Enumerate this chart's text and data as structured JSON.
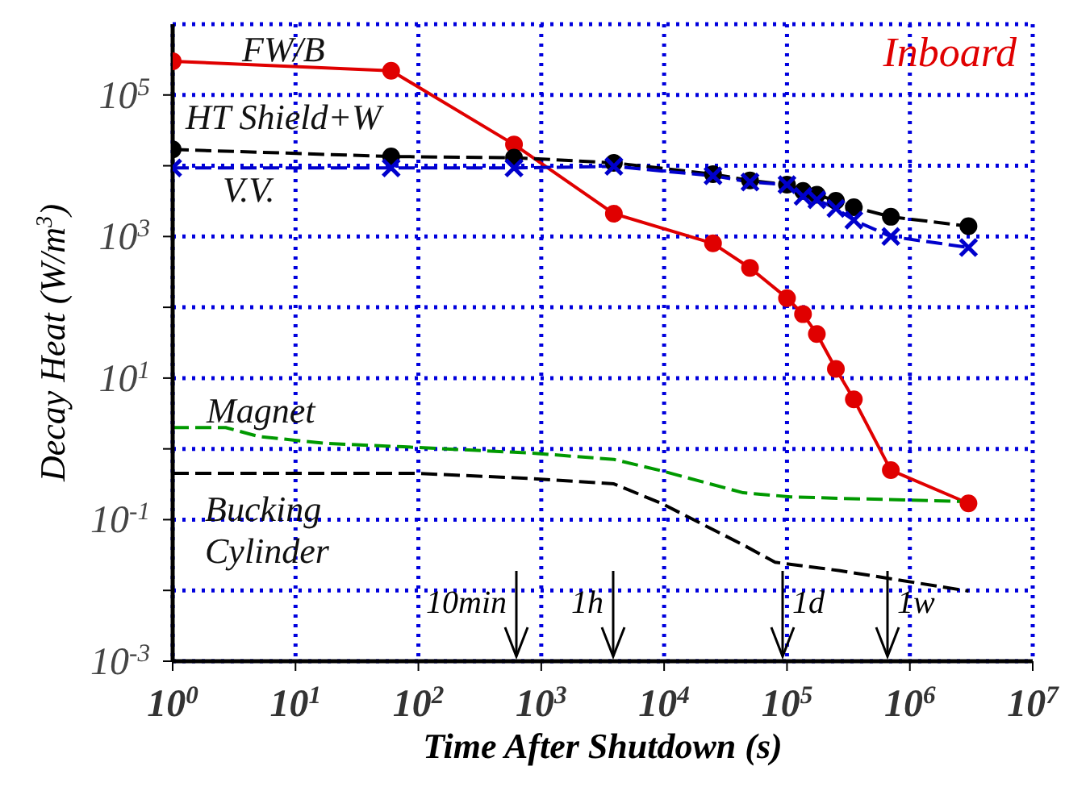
{
  "chart_data": {
    "type": "line",
    "xlabel": "Time After Shutdown (s)",
    "ylabel": "Decay Heat (W/m$^{3}$)",
    "log": "xy",
    "grid": true,
    "xlim": [
      1,
      10000000
    ],
    "ylim": [
      0.001,
      1000000
    ],
    "xticks": [
      {
        "value": 1,
        "label": "10$^{0}$"
      },
      {
        "value": 10,
        "label": "10$^{1}$"
      },
      {
        "value": 100,
        "label": "10$^{2}$"
      },
      {
        "value": 1000,
        "label": "10$^{3}$"
      },
      {
        "value": 10000,
        "label": "10$^{4}$"
      },
      {
        "value": 100000,
        "label": "10$^{5}$"
      },
      {
        "value": 1000000,
        "label": "10$^{6}$"
      },
      {
        "value": 10000000,
        "label": "10$^{7}$"
      }
    ],
    "yticks": [
      {
        "value": 0.001,
        "label": "10$^{-3}$"
      },
      {
        "value": 0.01,
        "label": null
      },
      {
        "value": 0.1,
        "label": "10$^{-1}$"
      },
      {
        "value": 1,
        "label": null
      },
      {
        "value": 10,
        "label": "10$^{1}$"
      },
      {
        "value": 100,
        "label": null
      },
      {
        "value": 1000,
        "label": "10$^{3}$"
      },
      {
        "value": 10000,
        "label": null
      },
      {
        "value": 100000,
        "label": "10$^{5}$"
      }
    ],
    "series": [
      {
        "name": "FW/B",
        "color": "#e00000",
        "marker": "circle",
        "line_style": "solid",
        "x": [
          1,
          60,
          600,
          3900,
          25000,
          50000,
          100000,
          135000,
          175000,
          250000,
          350000,
          700000,
          3000000
        ],
        "values": [
          300000,
          220000,
          20000,
          2100,
          800,
          360,
          135,
          80,
          42,
          13.5,
          5,
          0.5,
          0.17
        ]
      },
      {
        "name": "HT Shield+W",
        "color": "#000000",
        "marker": "circle",
        "line_style": "dashed",
        "x": [
          1,
          60,
          600,
          3900,
          25000,
          50000,
          100000,
          135000,
          175000,
          250000,
          350000,
          700000,
          3000000
        ],
        "values": [
          17000,
          13500,
          13000,
          11000,
          7600,
          6200,
          5400,
          4400,
          3900,
          3200,
          2600,
          1900,
          1400
        ]
      },
      {
        "name": "V.V.",
        "color": "#0000cc",
        "marker": "cross",
        "line_style": "dashed",
        "x": [
          1,
          60,
          600,
          3900,
          25000,
          50000,
          100000,
          135000,
          175000,
          250000,
          350000,
          700000,
          3000000
        ],
        "values": [
          9300,
          9300,
          9300,
          9800,
          7200,
          5900,
          5400,
          3700,
          3300,
          2500,
          1700,
          1000,
          700
        ]
      },
      {
        "name": "Magnet",
        "color": "#009900",
        "marker": "none",
        "line_style": "dashed",
        "x": [
          1,
          2.7,
          5,
          17,
          75,
          850,
          3900,
          9500,
          44000,
          107000,
          270000,
          900000,
          3000000
        ],
        "values": [
          2,
          2,
          1.5,
          1.2,
          1.07,
          0.87,
          0.71,
          0.49,
          0.24,
          0.21,
          0.2,
          0.19,
          0.18
        ]
      },
      {
        "name": "Bucking Cylinder",
        "color": "#000000",
        "marker": "none",
        "line_style": "dashed",
        "x": [
          1,
          100,
          850,
          3900,
          9500,
          44000,
          80000,
          270000,
          3000000
        ],
        "values": [
          0.45,
          0.45,
          0.38,
          0.32,
          0.17,
          0.044,
          0.025,
          0.019,
          0.0098
        ]
      }
    ],
    "annotations": [
      "Inboard",
      "10min",
      "1h",
      "1d",
      "1w"
    ]
  }
}
